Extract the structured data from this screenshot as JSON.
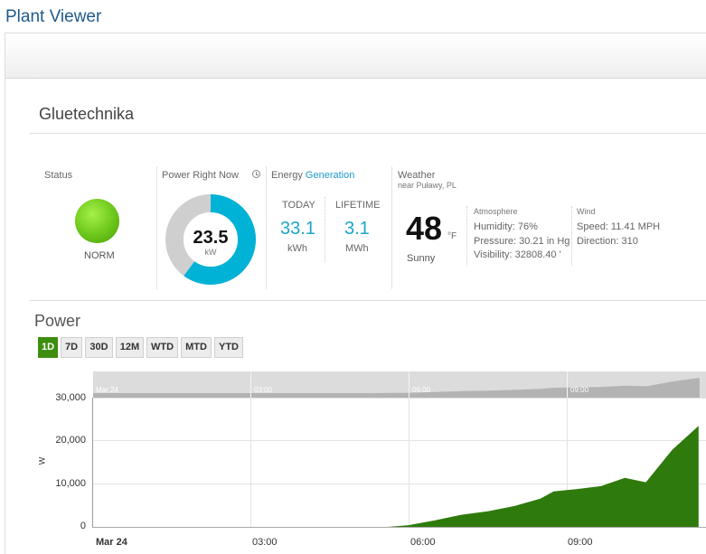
{
  "app": {
    "title": "Plant Viewer"
  },
  "plant": {
    "name": "Gluetechnika"
  },
  "status": {
    "label": "Status",
    "value": "NORM",
    "color": "#6bc61a"
  },
  "power_now": {
    "label": "Power Right Now",
    "value": "23.5",
    "unit": "kW",
    "fill_fraction": 0.6,
    "accent": "#00b2d6",
    "track": "#cfcfcf"
  },
  "energy": {
    "label": "Energy",
    "accent_label": "Generation",
    "today": {
      "label": "TODAY",
      "value": "33.1",
      "unit": "kWh"
    },
    "lifetime": {
      "label": "LIFETIME",
      "value": "3.1",
      "unit": "MWh"
    }
  },
  "weather": {
    "label": "Weather",
    "location": "near Puławy, PL",
    "temperature": "48",
    "temp_unit": "°F",
    "condition": "Sunny",
    "atmosphere": {
      "label": "Atmosphere",
      "humidity": "Humidity: 76%",
      "pressure": "Pressure: 30.21 in Hg",
      "visibility": "Visibility: 32808.40 '"
    },
    "wind": {
      "label": "Wind",
      "speed": "Speed: 11.41 MPH",
      "direction": "Direction: 310"
    }
  },
  "power_section": {
    "title": "Power",
    "ranges": [
      {
        "label": "1D",
        "active": true
      },
      {
        "label": "7D",
        "active": false
      },
      {
        "label": "30D",
        "active": false
      },
      {
        "label": "12M",
        "active": false
      },
      {
        "label": "WTD",
        "active": false
      },
      {
        "label": "MTD",
        "active": false
      },
      {
        "label": "YTD",
        "active": false
      }
    ]
  },
  "navigator": {
    "labels": [
      "Mar 24",
      "03:00",
      "06:00",
      "09:00"
    ]
  },
  "chart_data": {
    "type": "area",
    "title": "",
    "xlabel": "",
    "ylabel": "W",
    "color": "#2f7a0c",
    "ylim": [
      0,
      30000
    ],
    "yticks": [
      "30,000",
      "20,000",
      "10,000",
      "0"
    ],
    "xticks": [
      "Mar 24",
      "03:00",
      "06:00",
      "09:00"
    ],
    "xlim_hours": [
      0,
      11.5
    ],
    "series": [
      {
        "points": [
          [
            0,
            0
          ],
          [
            5.3,
            0
          ],
          [
            5.5,
            100
          ],
          [
            6.0,
            600
          ],
          [
            6.5,
            1700
          ],
          [
            7.0,
            3000
          ],
          [
            7.5,
            3800
          ],
          [
            8.0,
            5000
          ],
          [
            8.5,
            6700
          ],
          [
            8.75,
            8400
          ],
          [
            9.25,
            9000
          ],
          [
            9.65,
            9600
          ],
          [
            10.1,
            11500
          ],
          [
            10.5,
            10500
          ],
          [
            11.0,
            18000
          ],
          [
            11.5,
            23500
          ]
        ]
      }
    ]
  }
}
